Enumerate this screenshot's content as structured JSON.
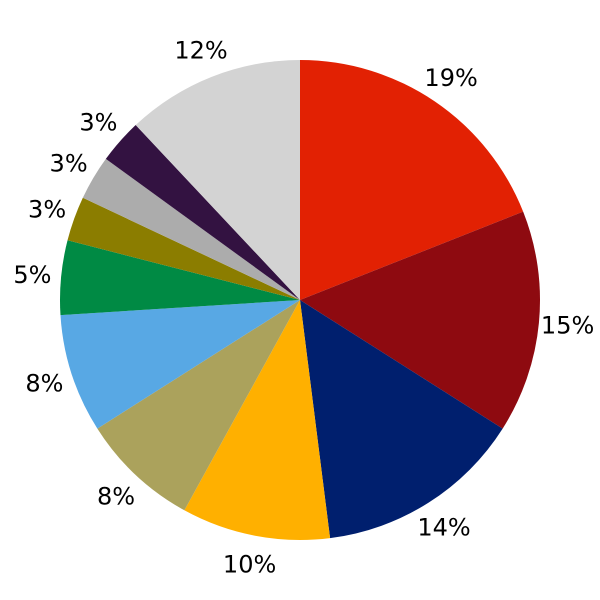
{
  "figure": {
    "background": "#ffffff",
    "text_color": "#000000"
  },
  "chart_data": {
    "type": "pie",
    "title": "",
    "xlabel": "",
    "ylabel": "",
    "legend": "none",
    "grid": false,
    "direction": "clockwise",
    "start_angle_deg_clockwise_from_top": 0,
    "center": [
      300,
      300
    ],
    "radius": 240,
    "label_distance_ratio": 1.12,
    "label_font_size": 24,
    "categories": [
      "19%",
      "15%",
      "14%",
      "10%",
      "8%",
      "8%",
      "5%",
      "3%",
      "3%",
      "3%",
      "12%"
    ],
    "values": [
      19,
      15,
      14,
      10,
      8,
      8,
      5,
      3,
      3,
      3,
      12
    ],
    "slices": [
      {
        "label": "19%",
        "value": 19,
        "color": "#E22103"
      },
      {
        "label": "15%",
        "value": 15,
        "color": "#8E0A10"
      },
      {
        "label": "14%",
        "value": 14,
        "color": "#001F6E"
      },
      {
        "label": "10%",
        "value": 10,
        "color": "#FFB000"
      },
      {
        "label": "8%",
        "value": 8,
        "color": "#ABA25C"
      },
      {
        "label": "8%",
        "value": 8,
        "color": "#58A8E4"
      },
      {
        "label": "5%",
        "value": 5,
        "color": "#008A44"
      },
      {
        "label": "3%",
        "value": 3,
        "color": "#8B7D00"
      },
      {
        "label": "3%",
        "value": 3,
        "color": "#ACACAC"
      },
      {
        "label": "3%",
        "value": 3,
        "color": "#331241"
      },
      {
        "label": "12%",
        "value": 12,
        "color": "#D3D3D3"
      }
    ]
  }
}
